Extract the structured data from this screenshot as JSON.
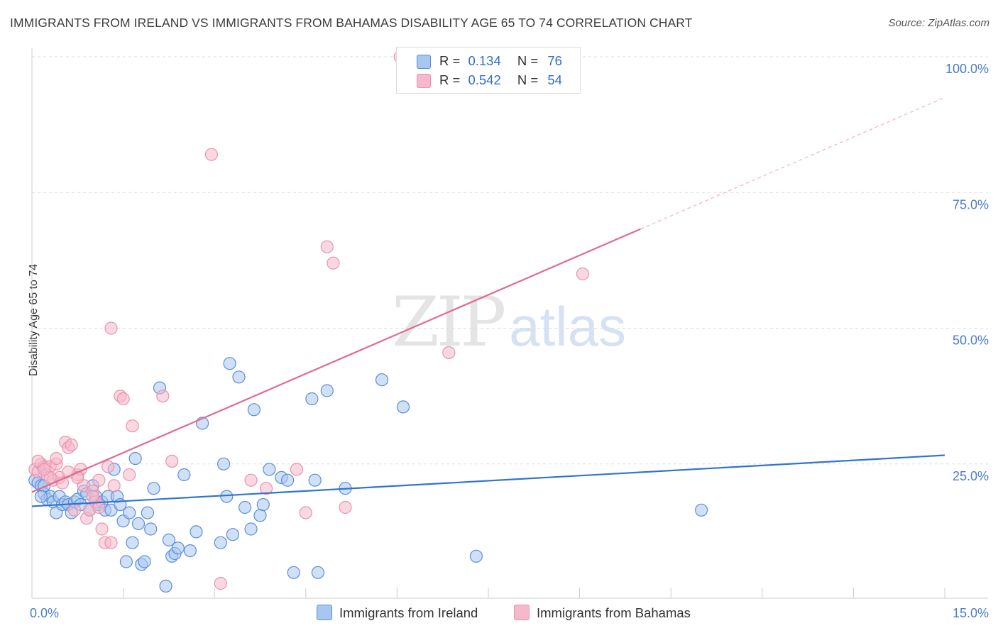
{
  "title": "IMMIGRANTS FROM IRELAND VS IMMIGRANTS FROM BAHAMAS DISABILITY AGE 65 TO 74 CORRELATION CHART",
  "source": "Source: ZipAtlas.com",
  "watermark": {
    "zip": "ZIP",
    "atlas": "atlas"
  },
  "legend": {
    "rows": [
      {
        "r_label": "R =",
        "r_value": "0.134",
        "n_label": "N =",
        "n_value": "76"
      },
      {
        "r_label": "R =",
        "r_value": "0.542",
        "n_label": "N =",
        "n_value": "54"
      }
    ]
  },
  "bottom_legend": {
    "ireland": "Immigrants from Ireland",
    "bahamas": "Immigrants from Bahamas"
  },
  "colors": {
    "ireland_fill": "#a9c6f0",
    "ireland_stroke": "#5b8fd8",
    "ireland_line": "#2f74d0",
    "bahamas_fill": "#f6b8cb",
    "bahamas_stroke": "#e892ad",
    "bahamas_line": "#e06a92",
    "grid": "#dddddd",
    "tick_text": "#4a7ccf"
  },
  "chart_data": {
    "type": "scatter",
    "title": "IMMIGRANTS FROM IRELAND VS IMMIGRANTS FROM BAHAMAS DISABILITY AGE 65 TO 74 CORRELATION CHART",
    "xlabel": "",
    "ylabel": "Disability Age 65 to 74",
    "xlim": [
      0,
      15
    ],
    "ylim": [
      0,
      100
    ],
    "x_tick_labels": [
      "0.0%",
      "15.0%"
    ],
    "y_ticks": [
      25,
      50,
      75,
      100
    ],
    "y_tick_labels": [
      "25.0%",
      "50.0%",
      "75.0%",
      "100.0%"
    ],
    "series": [
      {
        "name": "Immigrants from Ireland",
        "R": 0.134,
        "N": 76,
        "trend": {
          "x0": 0,
          "y0": 17.2,
          "x1": 15,
          "y1": 26.6,
          "dashed_from": null
        },
        "points": [
          [
            0.05,
            22.0
          ],
          [
            0.1,
            21.5
          ],
          [
            0.15,
            21.0
          ],
          [
            0.2,
            19.5
          ],
          [
            0.25,
            18.5
          ],
          [
            0.3,
            19.0
          ],
          [
            0.35,
            18.0
          ],
          [
            0.4,
            16.0
          ],
          [
            0.45,
            19.0
          ],
          [
            0.5,
            17.5
          ],
          [
            0.55,
            18.0
          ],
          [
            0.6,
            17.5
          ],
          [
            0.65,
            16.0
          ],
          [
            0.7,
            18.0
          ],
          [
            0.75,
            18.5
          ],
          [
            0.8,
            17.5
          ],
          [
            0.85,
            20.0
          ],
          [
            0.9,
            19.5
          ],
          [
            0.95,
            16.5
          ],
          [
            1.0,
            21.0
          ],
          [
            1.05,
            19.0
          ],
          [
            1.1,
            17.5
          ],
          [
            1.15,
            18.0
          ],
          [
            1.2,
            16.5
          ],
          [
            1.25,
            19.0
          ],
          [
            1.3,
            16.5
          ],
          [
            1.35,
            24.0
          ],
          [
            1.4,
            19.0
          ],
          [
            1.45,
            17.5
          ],
          [
            1.5,
            14.5
          ],
          [
            1.55,
            7.0
          ],
          [
            1.6,
            16.0
          ],
          [
            1.65,
            10.5
          ],
          [
            1.7,
            26.0
          ],
          [
            1.75,
            14.0
          ],
          [
            1.8,
            6.5
          ],
          [
            1.85,
            7.0
          ],
          [
            1.9,
            16.0
          ],
          [
            1.95,
            13.0
          ],
          [
            2.0,
            20.5
          ],
          [
            2.1,
            39.0
          ],
          [
            2.2,
            2.5
          ],
          [
            2.25,
            11.0
          ],
          [
            2.3,
            8.0
          ],
          [
            2.35,
            8.5
          ],
          [
            2.4,
            9.5
          ],
          [
            2.5,
            23.0
          ],
          [
            2.6,
            9.0
          ],
          [
            2.7,
            12.5
          ],
          [
            2.8,
            32.5
          ],
          [
            3.1,
            10.5
          ],
          [
            3.15,
            25.0
          ],
          [
            3.2,
            19.0
          ],
          [
            3.3,
            12.0
          ],
          [
            3.25,
            43.5
          ],
          [
            3.4,
            41.0
          ],
          [
            3.5,
            17.0
          ],
          [
            3.6,
            13.0
          ],
          [
            3.65,
            35.0
          ],
          [
            3.75,
            15.5
          ],
          [
            3.8,
            17.5
          ],
          [
            3.9,
            24.0
          ],
          [
            4.1,
            22.5
          ],
          [
            4.2,
            22.0
          ],
          [
            4.3,
            5.0
          ],
          [
            4.6,
            37.0
          ],
          [
            4.65,
            22.0
          ],
          [
            4.7,
            5.0
          ],
          [
            4.85,
            38.5
          ],
          [
            5.15,
            20.5
          ],
          [
            5.75,
            40.5
          ],
          [
            6.1,
            35.5
          ],
          [
            7.3,
            8.0
          ],
          [
            11.0,
            16.5
          ],
          [
            0.2,
            21.0
          ],
          [
            0.15,
            19.0
          ]
        ]
      },
      {
        "name": "Immigrants from Bahamas",
        "R": 0.542,
        "N": 54,
        "trend": {
          "x0": 0,
          "y0": 19.8,
          "x1": 15,
          "y1": 92.5,
          "dashed_from": 10.0
        },
        "points": [
          [
            0.05,
            24.0
          ],
          [
            0.1,
            23.5
          ],
          [
            0.15,
            25.0
          ],
          [
            0.2,
            24.5
          ],
          [
            0.25,
            23.0
          ],
          [
            0.3,
            24.5
          ],
          [
            0.35,
            22.0
          ],
          [
            0.4,
            25.0
          ],
          [
            0.45,
            22.5
          ],
          [
            0.5,
            21.5
          ],
          [
            0.55,
            29.0
          ],
          [
            0.6,
            28.0
          ],
          [
            0.65,
            28.5
          ],
          [
            0.7,
            16.5
          ],
          [
            0.75,
            23.0
          ],
          [
            0.8,
            24.0
          ],
          [
            0.85,
            21.0
          ],
          [
            0.9,
            15.0
          ],
          [
            0.95,
            16.5
          ],
          [
            1.0,
            20.0
          ],
          [
            1.05,
            18.0
          ],
          [
            1.1,
            17.0
          ],
          [
            1.15,
            13.0
          ],
          [
            1.2,
            10.5
          ],
          [
            1.25,
            24.5
          ],
          [
            1.3,
            10.5
          ],
          [
            1.35,
            21.0
          ],
          [
            1.45,
            37.5
          ],
          [
            1.5,
            37.0
          ],
          [
            1.6,
            23.0
          ],
          [
            1.65,
            32.0
          ],
          [
            1.3,
            50.0
          ],
          [
            2.15,
            37.5
          ],
          [
            2.3,
            25.5
          ],
          [
            2.95,
            82.0
          ],
          [
            3.1,
            3.0
          ],
          [
            3.6,
            22.0
          ],
          [
            3.85,
            20.5
          ],
          [
            4.35,
            24.0
          ],
          [
            4.5,
            16.0
          ],
          [
            4.85,
            65.0
          ],
          [
            4.95,
            62.0
          ],
          [
            5.15,
            17.0
          ],
          [
            6.05,
            100.0
          ],
          [
            6.85,
            45.5
          ],
          [
            9.05,
            60.0
          ],
          [
            0.1,
            25.5
          ],
          [
            0.3,
            22.5
          ],
          [
            0.4,
            26.0
          ],
          [
            0.6,
            23.5
          ],
          [
            0.75,
            22.5
          ],
          [
            1.0,
            19.0
          ],
          [
            1.1,
            22.0
          ],
          [
            0.2,
            24.0
          ]
        ]
      }
    ],
    "legend_position": "top-center"
  }
}
